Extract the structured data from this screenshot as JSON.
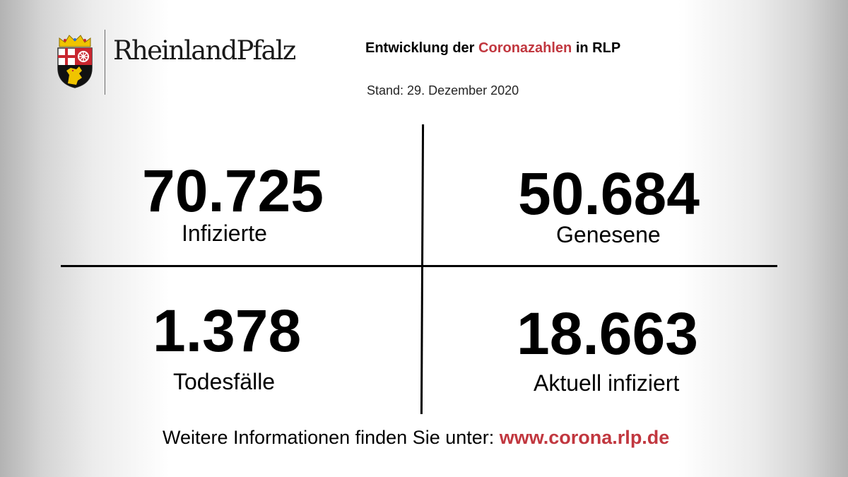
{
  "logo": {
    "wordmark": "RheinlandPfalz",
    "coat_icon": "rlp-coat-of-arms-icon"
  },
  "header": {
    "title_pre": "Entwicklung der ",
    "title_highlight": "Coronazahlen",
    "title_post": " in RLP",
    "date": "Stand: 29. Dezember 2020"
  },
  "stats": [
    {
      "value": "70.725",
      "label": "Infizierte"
    },
    {
      "value": "50.684",
      "label": "Genesene"
    },
    {
      "value": "1.378",
      "label": "Todesfälle"
    },
    {
      "value": "18.663",
      "label": "Aktuell infiziert"
    }
  ],
  "footer": {
    "text": "Weitere Informationen finden Sie unter: ",
    "link": "www.corona.rlp.de"
  },
  "colors": {
    "accent": "#c1373f",
    "text": "#000000",
    "coat_red": "#c8262f",
    "coat_gold": "#f0c400",
    "coat_black": "#111111"
  }
}
